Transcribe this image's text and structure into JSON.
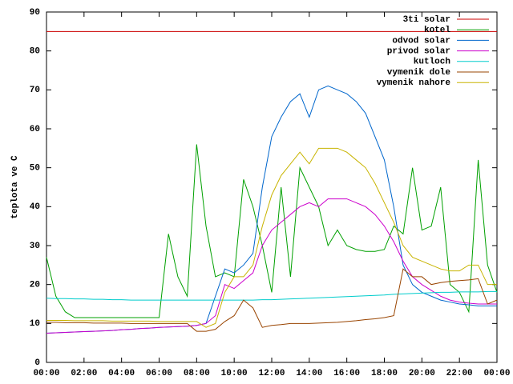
{
  "chart_data": {
    "type": "line",
    "ylabel": "teplota ve C",
    "x": [
      0,
      0.5,
      1,
      1.5,
      2,
      2.5,
      3,
      3.5,
      4,
      4.5,
      5,
      5.5,
      6,
      6.5,
      7,
      7.5,
      8,
      8.5,
      9,
      9.5,
      10,
      10.5,
      11,
      11.5,
      12,
      12.5,
      13,
      13.5,
      14,
      14.5,
      15,
      15.5,
      16,
      16.5,
      17,
      17.5,
      18,
      18.5,
      19,
      19.5,
      20,
      20.5,
      21,
      21.5,
      22,
      22.5,
      23,
      23.5,
      24
    ],
    "xlim": [
      0,
      24
    ],
    "xticks": [
      {
        "value": 0,
        "label": "00:00"
      },
      {
        "value": 2,
        "label": "02:00"
      },
      {
        "value": 4,
        "label": "04:00"
      },
      {
        "value": 6,
        "label": "06:00"
      },
      {
        "value": 8,
        "label": "08:00"
      },
      {
        "value": 10,
        "label": "10:00"
      },
      {
        "value": 12,
        "label": "12:00"
      },
      {
        "value": 14,
        "label": "14:00"
      },
      {
        "value": 16,
        "label": "16:00"
      },
      {
        "value": 18,
        "label": "18:00"
      },
      {
        "value": 20,
        "label": "20:00"
      },
      {
        "value": 22,
        "label": "22:00"
      },
      {
        "value": 24,
        "label": "00:00"
      }
    ],
    "ylim": [
      0,
      90
    ],
    "yticks": [
      0,
      10,
      20,
      30,
      40,
      50,
      60,
      70,
      80,
      90
    ],
    "legend": "top-right",
    "series": [
      {
        "name": "3ti solar",
        "color": "#cc0000",
        "values": [
          85,
          85,
          85,
          85,
          85,
          85,
          85,
          85,
          85,
          85,
          85,
          85,
          85,
          85,
          85,
          85,
          85,
          85,
          85,
          85,
          85,
          85,
          85,
          85,
          85,
          85,
          85,
          85,
          85,
          85,
          85,
          85,
          85,
          85,
          85,
          85,
          85,
          85,
          85,
          85,
          85,
          85,
          85,
          85,
          85,
          85,
          85,
          85,
          85
        ]
      },
      {
        "name": "kotel",
        "color": "#00a000",
        "values": [
          27,
          17,
          13,
          11.5,
          11.5,
          11.5,
          11.5,
          11.5,
          11.5,
          11.5,
          11.5,
          11.5,
          11.5,
          33,
          22,
          17,
          56,
          35,
          22,
          23,
          22,
          47,
          40,
          30,
          18,
          45,
          22,
          50,
          45,
          40,
          30,
          34,
          30,
          29,
          28.5,
          28.5,
          29,
          35,
          33,
          50,
          34,
          35,
          45,
          20,
          18,
          13,
          52,
          25,
          18
        ]
      },
      {
        "name": "odvod solar",
        "color": "#0066cc",
        "values": [
          7.5,
          7.6,
          7.7,
          7.8,
          7.9,
          8,
          8.1,
          8.2,
          8.4,
          8.5,
          8.7,
          8.8,
          9,
          9.1,
          9.2,
          9.3,
          9.5,
          10,
          17,
          24,
          23,
          25,
          28,
          45,
          58,
          63,
          67,
          69,
          63,
          70,
          71,
          70,
          69,
          67,
          64,
          58,
          52,
          40,
          25,
          20,
          18,
          17,
          16,
          15.5,
          15,
          14.8,
          14.5,
          14.5,
          14.5
        ]
      },
      {
        "name": "privod solar",
        "color": "#cc00cc",
        "values": [
          7.5,
          7.6,
          7.7,
          7.8,
          7.9,
          8,
          8.1,
          8.2,
          8.4,
          8.5,
          8.7,
          8.8,
          9,
          9.1,
          9.2,
          9.3,
          9.5,
          10,
          12,
          20,
          19,
          21,
          23,
          30,
          34,
          36,
          38,
          40,
          41,
          40,
          42,
          42,
          42,
          41,
          40,
          38,
          35,
          31,
          26,
          22,
          20,
          18.5,
          17,
          16,
          15.5,
          15.2,
          15,
          15,
          15
        ]
      },
      {
        "name": "kutloch",
        "color": "#00cccc",
        "values": [
          16.5,
          16.4,
          16.4,
          16.3,
          16.3,
          16.2,
          16.2,
          16.1,
          16.1,
          16,
          16,
          16,
          16,
          16,
          16,
          16,
          16,
          16,
          16,
          16,
          16,
          16,
          16,
          16.1,
          16.1,
          16.2,
          16.3,
          16.4,
          16.5,
          16.6,
          16.7,
          16.8,
          16.9,
          17,
          17.1,
          17.2,
          17.3,
          17.5,
          17.6,
          17.7,
          17.8,
          17.9,
          18,
          18,
          18.1,
          18.1,
          18.1,
          18.2,
          18.2
        ]
      },
      {
        "name": "vymenik dole",
        "color": "#994400",
        "values": [
          10.3,
          10.3,
          10.2,
          10.2,
          10.2,
          10.1,
          10.1,
          10.1,
          10.1,
          10,
          10,
          10,
          10,
          10,
          10,
          10,
          8,
          8,
          8.5,
          10.5,
          12,
          16,
          14,
          9,
          9.5,
          9.7,
          10,
          10,
          10,
          10.1,
          10.2,
          10.3,
          10.5,
          10.7,
          11,
          11.2,
          11.5,
          12,
          24,
          22,
          22,
          20,
          20.5,
          20.8,
          21,
          21.2,
          21.5,
          15,
          16
        ]
      },
      {
        "name": "vymenik nahore",
        "color": "#c8b400",
        "values": [
          10.8,
          10.8,
          10.8,
          10.7,
          10.7,
          10.7,
          10.7,
          10.6,
          10.6,
          10.6,
          10.6,
          10.6,
          10.5,
          10.5,
          10.5,
          10.5,
          10.5,
          9,
          10,
          18,
          22,
          22,
          25,
          35,
          43,
          48,
          51,
          54,
          51,
          55,
          55,
          55,
          54,
          52,
          50,
          46,
          41,
          36,
          30,
          27,
          26,
          25,
          24,
          23.5,
          23.5,
          25,
          25,
          20,
          20
        ]
      }
    ]
  }
}
